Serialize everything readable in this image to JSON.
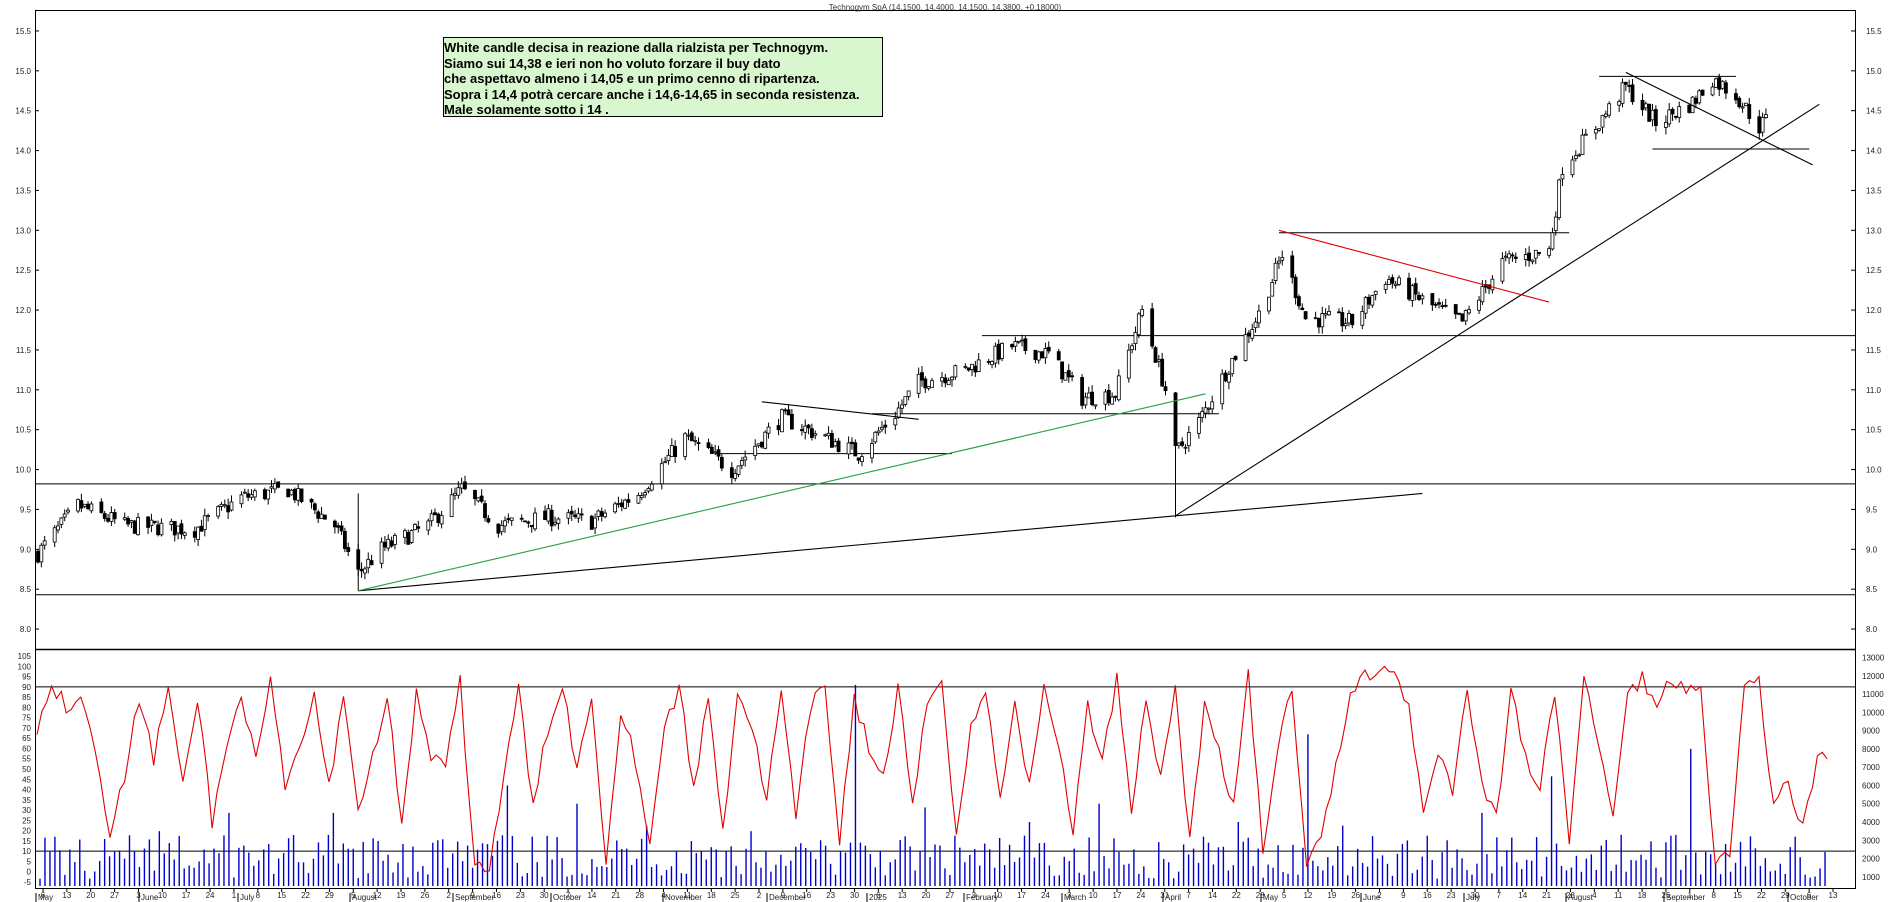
{
  "header": {
    "title": "Technogym SpA (14.1500, 14.4000, 14.1500, 14.3800, +0.18000)"
  },
  "annotation": {
    "lines": [
      "White candle decisa in reazione dalla rialzista per Technogym.",
      "Siamo sui 14,38 e ieri non ho voluto forzare il buy dato",
      "che aspettavo almeno i 14,05 e un primo cenno di ripartenza.",
      "Sopra i 14,4 potrà cercare anche i 14,6-14,65 in seconda resistenza.",
      "Male solamente sotto i 14 ."
    ]
  },
  "colors": {
    "candle": "#000000",
    "stochastic": "#e00000",
    "volume": "#0000cc",
    "trend_green": "#20a040",
    "trend_red": "#e00000"
  },
  "chart_data": [
    {
      "type": "candlestick",
      "title": "Technogym SpA (14.1500, 14.4000, 14.1500, 14.3800, +0.18000)",
      "y_ticks": [
        "8.0",
        "8.5",
        "9.0",
        "9.5",
        "10.0",
        "10.5",
        "11.0",
        "11.5",
        "12.0",
        "12.5",
        "13.0",
        "13.5",
        "14.0",
        "14.5",
        "15.0",
        "15.5"
      ],
      "ylim": [
        7.8,
        15.7
      ],
      "x_day_labels": [
        "6",
        "13",
        "20",
        "27",
        "3",
        "10",
        "17",
        "24",
        "1",
        "8",
        "15",
        "22",
        "29",
        "5",
        "12",
        "19",
        "26",
        "2",
        "9",
        "16",
        "23",
        "30",
        "7",
        "14",
        "21",
        "28",
        "4",
        "11",
        "18",
        "25",
        "2",
        "9",
        "16",
        "23",
        "30",
        "6",
        "13",
        "20",
        "27",
        "3",
        "10",
        "17",
        "24",
        "3",
        "10",
        "17",
        "24",
        "31",
        "7",
        "14",
        "22",
        "28",
        "5",
        "12",
        "19",
        "26",
        "2",
        "9",
        "16",
        "23",
        "30",
        "7",
        "14",
        "21",
        "28",
        "4",
        "11",
        "18",
        "25",
        "1",
        "8",
        "15",
        "22",
        "29",
        "6",
        "13"
      ],
      "months": [
        "May",
        "June",
        "July",
        "August",
        "September",
        "October",
        "November",
        "December",
        "2025",
        "February",
        "March",
        "April",
        "May",
        "June",
        "July",
        "August",
        "September",
        "October"
      ],
      "horizontal_lines": [
        8.43,
        9.82,
        10.2,
        10.7,
        11.68,
        12.97,
        14.02,
        14.93
      ],
      "trendlines": [
        {
          "from": [
            "2024-08-05",
            8.48
          ],
          "to": [
            "2025-04-07",
            9.42
          ],
          "color": "black"
        },
        {
          "from": [
            "2024-08-05",
            8.48
          ],
          "to": [
            "2025-04-16",
            10.95
          ],
          "color": "green"
        },
        {
          "from": [
            "2025-04-07",
            9.42
          ],
          "to": [
            "2025-06-20",
            9.7
          ],
          "color": "black"
        },
        {
          "from": [
            "2025-04-07",
            9.42
          ],
          "to": [
            "2025-10-17",
            14.58
          ],
          "color": "black"
        },
        {
          "from": [
            "2025-05-08",
            13.0
          ],
          "to": [
            "2025-07-28",
            12.1
          ],
          "color": "red"
        },
        {
          "from": [
            "2024-12-04",
            10.85
          ],
          "to": [
            "2025-01-20",
            10.63
          ],
          "color": "black"
        },
        {
          "from": [
            "2025-08-20",
            14.98
          ],
          "to": [
            "2025-10-15",
            13.82
          ],
          "color": "black"
        }
      ],
      "close_path": [
        [
          "2024-05-01",
          8.95
        ],
        [
          "2024-05-13",
          9.55
        ],
        [
          "2024-05-27",
          9.3
        ],
        [
          "2024-06-17",
          9.25
        ],
        [
          "2024-07-01",
          9.65
        ],
        [
          "2024-07-15",
          9.75
        ],
        [
          "2024-07-29",
          9.3
        ],
        [
          "2024-08-05",
          8.7
        ],
        [
          "2024-08-12",
          9.0
        ],
        [
          "2024-08-26",
          9.3
        ],
        [
          "2024-09-05",
          9.75
        ],
        [
          "2024-09-16",
          9.3
        ],
        [
          "2024-10-01",
          9.4
        ],
        [
          "2024-10-14",
          9.35
        ],
        [
          "2024-10-28",
          9.7
        ],
        [
          "2024-11-11",
          10.4
        ],
        [
          "2024-11-25",
          10.0
        ],
        [
          "2024-12-02",
          10.3
        ],
        [
          "2024-12-10",
          10.65
        ],
        [
          "2024-12-23",
          10.4
        ],
        [
          "2025-01-02",
          10.2
        ],
        [
          "2025-01-13",
          10.7
        ],
        [
          "2025-01-20",
          11.1
        ],
        [
          "2025-02-03",
          11.25
        ],
        [
          "2025-02-17",
          11.55
        ],
        [
          "2025-02-28",
          11.45
        ],
        [
          "2025-03-10",
          10.9
        ],
        [
          "2025-03-20",
          10.95
        ],
        [
          "2025-03-28",
          12.0
        ],
        [
          "2025-04-04",
          11.0
        ],
        [
          "2025-04-07",
          10.2
        ],
        [
          "2025-04-14",
          10.6
        ],
        [
          "2025-04-23",
          11.3
        ],
        [
          "2025-05-02",
          11.95
        ],
        [
          "2025-05-09",
          12.7
        ],
        [
          "2025-05-16",
          11.9
        ],
        [
          "2025-05-30",
          11.85
        ],
        [
          "2025-06-09",
          12.4
        ],
        [
          "2025-06-23",
          12.05
        ],
        [
          "2025-07-02",
          11.85
        ],
        [
          "2025-07-14",
          12.6
        ],
        [
          "2025-07-28",
          12.75
        ],
        [
          "2025-08-01",
          13.8
        ],
        [
          "2025-08-11",
          14.3
        ],
        [
          "2025-08-20",
          14.8
        ],
        [
          "2025-08-29",
          14.35
        ],
        [
          "2025-09-09",
          14.6
        ],
        [
          "2025-09-15",
          14.9
        ],
        [
          "2025-09-22",
          14.7
        ],
        [
          "2025-09-29",
          14.3
        ],
        [
          "2025-10-01",
          14.38
        ]
      ]
    },
    {
      "type": "line+bar",
      "series": [
        {
          "type": "line",
          "values": [
            68,
            92,
            80,
            88,
            60,
            20,
            45,
            85,
            55,
            90,
            40,
            85,
            25,
            60,
            88,
            52,
            92,
            40,
            60,
            85,
            40,
            88,
            30,
            55,
            88,
            20,
            88,
            55,
            50,
            92,
            3,
            2,
            45,
            90,
            30,
            70,
            92,
            50,
            85,
            5,
            80,
            55,
            15,
            70,
            90,
            40,
            85,
            20,
            88,
            70,
            35,
            88,
            25,
            80,
            90,
            15,
            85,
            60,
            45,
            90,
            30,
            82,
            95,
            18,
            70,
            88,
            35,
            85,
            40,
            90,
            62,
            20,
            80,
            55,
            95,
            30,
            85,
            45,
            90,
            15,
            80,
            60,
            30,
            95,
            10,
            60,
            90,
            5,
            20,
            50,
            85,
            96,
            98,
            100,
            80,
            30,
            60,
            40,
            88,
            45,
            25,
            90,
            55,
            40,
            88,
            15,
            95,
            60,
            30,
            85,
            95,
            80,
            95,
            90,
            90,
            5,
            8,
            90,
            95,
            30,
            45,
            20,
            55
          ]
        },
        {
          "type": "bar",
          "values": [
            3200,
            900,
            2000,
            3500,
            1500,
            4500,
            2500,
            1800,
            4500,
            1200,
            2800,
            3000,
            1500,
            6000,
            1000,
            5000,
            2000,
            3800,
            1200,
            2500,
            3500,
            1600,
            3000,
            11500,
            1800,
            4800,
            2600,
            1500,
            4000,
            2100,
            5000,
            2500,
            1800,
            3200,
            4000,
            1500,
            8800,
            3800,
            2000,
            1200,
            3000,
            4500,
            1800,
            6500,
            2000,
            3300,
            1500,
            8000,
            2800,
            1600
          ]
        }
      ],
      "y_left_ticks": [
        "-5",
        "0",
        "5",
        "10",
        "15",
        "20",
        "25",
        "30",
        "35",
        "40",
        "45",
        "50",
        "55",
        "60",
        "65",
        "70",
        "75",
        "80",
        "85",
        "90",
        "95",
        "100",
        "105"
      ],
      "y_right_ticks": [
        "1000",
        "2000",
        "3000",
        "4000",
        "5000",
        "6000",
        "7000",
        "8000",
        "9000",
        "10000",
        "11000",
        "12000",
        "13000"
      ],
      "levels": [
        90,
        10
      ]
    }
  ]
}
